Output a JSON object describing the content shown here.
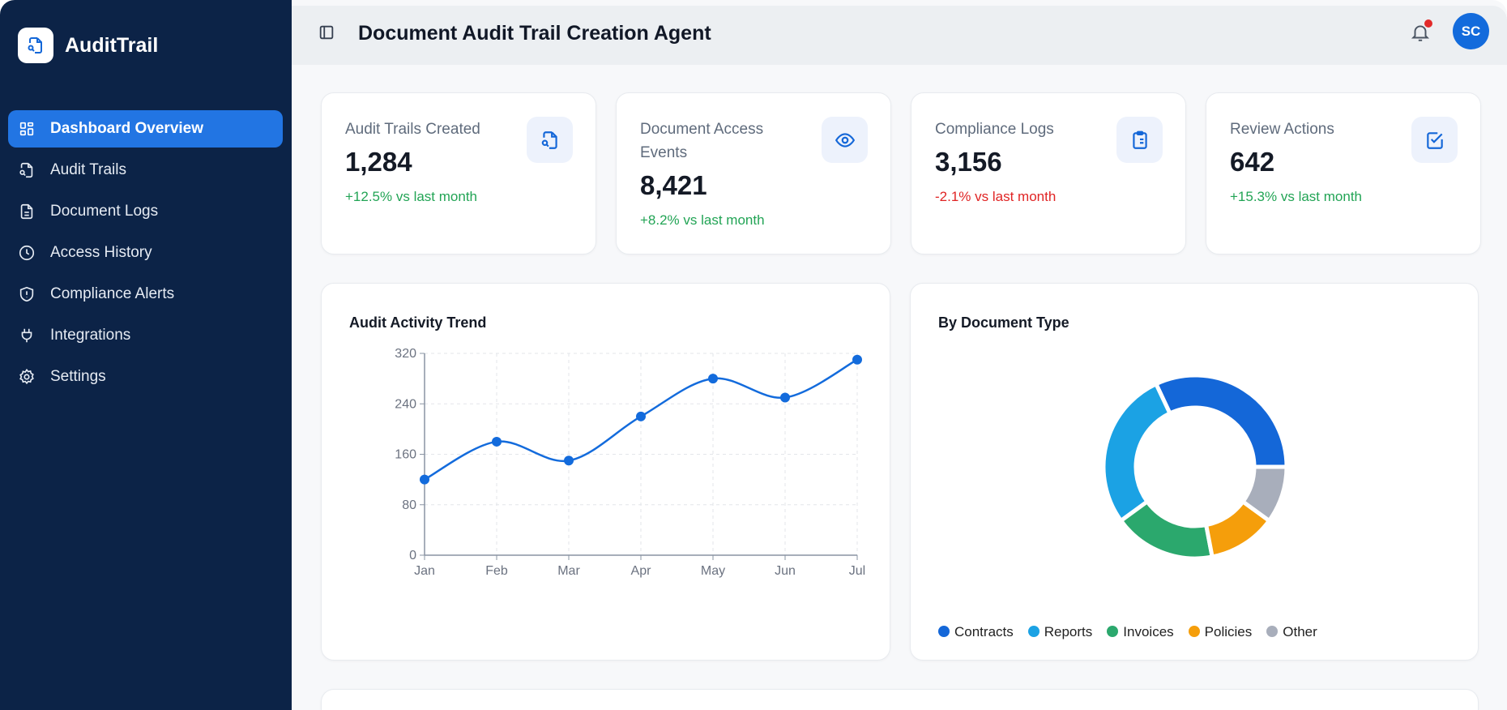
{
  "app": {
    "name": "AuditTrail",
    "title": "Document Audit Trail Creation Agent",
    "avatar_initials": "SC",
    "notification_dot_color": "#e22a2a"
  },
  "sidebar": {
    "items": [
      {
        "label": "Dashboard Overview",
        "icon": "dashboard-grid-icon",
        "active": true
      },
      {
        "label": "Audit Trails",
        "icon": "file-search-icon"
      },
      {
        "label": "Document Logs",
        "icon": "file-text-icon"
      },
      {
        "label": "Access History",
        "icon": "clock-icon"
      },
      {
        "label": "Compliance Alerts",
        "icon": "shield-alert-icon"
      },
      {
        "label": "Integrations",
        "icon": "plug-icon"
      },
      {
        "label": "Settings",
        "icon": "gear-icon"
      }
    ]
  },
  "stats": [
    {
      "label": "Audit Trails Created",
      "value": "1,284",
      "change": "+12.5% vs last month",
      "trend": "up",
      "icon": "file-search-icon"
    },
    {
      "label": "Document Access Events",
      "value": "8,421",
      "change": "+8.2% vs last month",
      "trend": "up",
      "icon": "eye-icon"
    },
    {
      "label": "Compliance Logs",
      "value": "3,156",
      "change": "-2.1% vs last month",
      "trend": "down",
      "icon": "clipboard-list-icon"
    },
    {
      "label": "Review Actions",
      "value": "642",
      "change": "+15.3% vs last month",
      "trend": "up",
      "icon": "check-square-icon"
    }
  ],
  "chart_data": [
    {
      "type": "line",
      "title": "Audit Activity Trend",
      "categories": [
        "Jan",
        "Feb",
        "Mar",
        "Apr",
        "May",
        "Jun",
        "Jul"
      ],
      "values": [
        120,
        180,
        150,
        220,
        280,
        250,
        310
      ],
      "ylim": [
        0,
        320
      ],
      "yticks": [
        0,
        80,
        160,
        240,
        320
      ],
      "grid": true,
      "color": "#136bdc"
    },
    {
      "type": "pie",
      "donut": true,
      "title": "By Document Type",
      "categories": [
        "Contracts",
        "Reports",
        "Invoices",
        "Policies",
        "Other"
      ],
      "values": [
        32,
        28,
        18,
        12,
        10
      ],
      "colors": [
        "#1467d8",
        "#1ba2e4",
        "#2ba86d",
        "#f59e0b",
        "#a8aebb"
      ],
      "legend": "bottom"
    }
  ]
}
